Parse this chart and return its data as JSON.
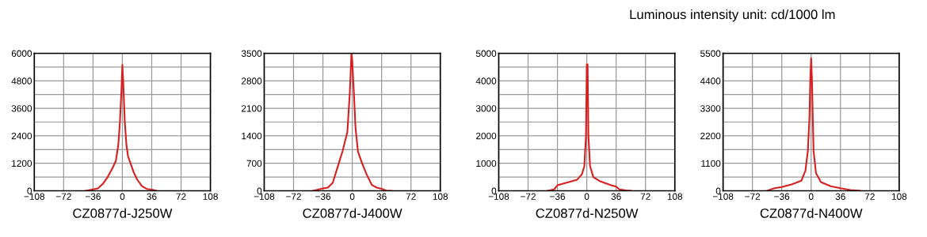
{
  "chart_data": [
    {
      "type": "line",
      "xlabel": "CZ0877d-J250W",
      "xlim": [
        -108,
        108
      ],
      "xticks": [
        {
          "value": -108,
          "label": "−108"
        },
        {
          "value": -72,
          "label": "−72"
        },
        {
          "value": -36,
          "label": "−36"
        },
        0,
        36,
        72,
        108
      ],
      "ylim": [
        0,
        6000
      ],
      "yticks": [
        0,
        {
          "value": 600,
          "label": null
        },
        1200,
        {
          "value": 1800,
          "label": null
        },
        2400,
        {
          "value": 3000,
          "label": null
        },
        3600,
        {
          "value": 4200,
          "label": null
        },
        4800,
        {
          "value": 5400,
          "label": null
        },
        6000
      ],
      "grid": true,
      "series": [
        {
          "color": "#d81e1e",
          "x": [
            -45,
            -36,
            -30,
            -24,
            -18,
            -12,
            -8,
            -5,
            -3,
            -1,
            0,
            1,
            3,
            5,
            7,
            10,
            14,
            18,
            24,
            30,
            36,
            42
          ],
          "values": [
            0,
            60,
            100,
            300,
            600,
            1000,
            1300,
            2000,
            3000,
            4500,
            5500,
            4800,
            3000,
            2000,
            1500,
            1200,
            800,
            500,
            200,
            80,
            50,
            0
          ]
        }
      ]
    },
    {
      "type": "line",
      "xlabel": "CZ0877d-J400W",
      "xlim": [
        -108,
        108
      ],
      "xticks": [
        {
          "value": -108,
          "label": "−108"
        },
        {
          "value": -72,
          "label": "−72"
        },
        {
          "value": -36,
          "label": "−36"
        },
        0,
        36,
        72,
        108
      ],
      "ylim": [
        0,
        3500
      ],
      "yticks": [
        0,
        {
          "value": 350,
          "label": null
        },
        700,
        {
          "value": 1050,
          "label": null
        },
        1400,
        {
          "value": 1750,
          "label": null
        },
        2100,
        {
          "value": 2450,
          "label": null
        },
        2800,
        {
          "value": 3150,
          "label": null
        },
        3500
      ],
      "grid": true,
      "series": [
        {
          "color": "#d81e1e",
          "x": [
            -48,
            -42,
            -36,
            -30,
            -24,
            -18,
            -12,
            -6,
            -3,
            -1,
            0,
            2,
            4,
            7,
            12,
            18,
            24,
            30,
            36,
            42,
            48
          ],
          "values": [
            0,
            30,
            60,
            80,
            200,
            600,
            1000,
            1500,
            2500,
            3500,
            3300,
            2500,
            1600,
            1000,
            700,
            400,
            150,
            80,
            50,
            0,
            0
          ]
        }
      ]
    },
    {
      "type": "line",
      "xlabel": "CZ0877d-N250W",
      "xlim": [
        -108,
        108
      ],
      "xticks": [
        {
          "value": -108,
          "label": "−108"
        },
        {
          "value": -72,
          "label": "−72"
        },
        {
          "value": -36,
          "label": "−36"
        },
        0,
        36,
        72,
        108
      ],
      "ylim": [
        0,
        5000
      ],
      "yticks": [
        0,
        {
          "value": 500,
          "label": null
        },
        1000,
        {
          "value": 1500,
          "label": null
        },
        2000,
        {
          "value": 2500,
          "label": null
        },
        3000,
        {
          "value": 3500,
          "label": null
        },
        4000,
        {
          "value": 4500,
          "label": null
        },
        5000
      ],
      "grid": true,
      "series": [
        {
          "color": "#d81e1e",
          "x": [
            -48,
            -40,
            -36,
            -24,
            -12,
            -6,
            -3,
            -1,
            0,
            1,
            2,
            4,
            8,
            16,
            30,
            36,
            40,
            48,
            54
          ],
          "values": [
            0,
            50,
            200,
            300,
            400,
            600,
            900,
            2000,
            4600,
            4600,
            2000,
            900,
            500,
            350,
            200,
            150,
            50,
            10,
            0
          ]
        }
      ]
    },
    {
      "type": "line",
      "xlabel": "CZ0877d-N400W",
      "xlim": [
        -108,
        108
      ],
      "xticks": [
        {
          "value": -108,
          "label": "−108"
        },
        {
          "value": -72,
          "label": "−72"
        },
        {
          "value": -36,
          "label": "−36"
        },
        0,
        36,
        72,
        108
      ],
      "ylim": [
        0,
        5500
      ],
      "yticks": [
        0,
        {
          "value": 550,
          "label": null
        },
        1100,
        {
          "value": 1650,
          "label": null
        },
        2200,
        {
          "value": 2750,
          "label": null
        },
        3300,
        {
          "value": 3850,
          "label": null
        },
        4400,
        {
          "value": 4950,
          "label": null
        },
        5500
      ],
      "grid": true,
      "annotations": [
        "Luminous intensity unit: cd/1000 lm"
      ],
      "series": [
        {
          "color": "#d81e1e",
          "x": [
            -54,
            -45,
            -36,
            -24,
            -12,
            -7,
            -4,
            -2,
            -1,
            0,
            1,
            2,
            3,
            6,
            12,
            24,
            36,
            48,
            60
          ],
          "values": [
            0,
            100,
            150,
            250,
            400,
            800,
            1600,
            3000,
            4500,
            5300,
            4500,
            3000,
            1600,
            700,
            350,
            180,
            100,
            30,
            0
          ]
        }
      ]
    }
  ]
}
